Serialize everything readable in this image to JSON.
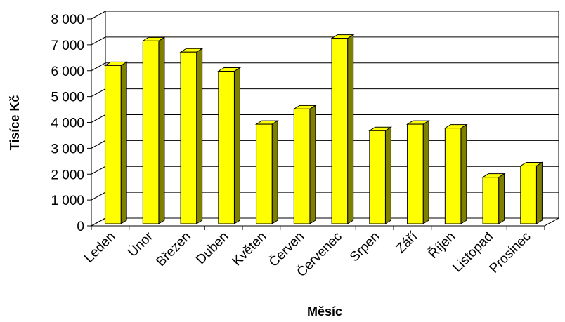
{
  "chart_data": {
    "type": "bar",
    "categories": [
      "Leden",
      "Únor",
      "Březen",
      "Duben",
      "Květen",
      "Červen",
      "Červenec",
      "Srpen",
      "Září",
      "Říjen",
      "Listopad",
      "Prosinec"
    ],
    "values": [
      6200,
      7150,
      6720,
      5980,
      3930,
      4520,
      7250,
      3680,
      3930,
      3780,
      1880,
      2320
    ],
    "title": "",
    "xlabel": "Měsíc",
    "ylabel": "Tisíce Kč",
    "ylim": [
      0,
      8000
    ],
    "yticks": [
      "0",
      "1 000",
      "2 000",
      "3 000",
      "4 000",
      "5 000",
      "6 000",
      "7 000",
      "8 000"
    ],
    "grid": true,
    "legend": "none",
    "bar_color": "#FFFF00",
    "bar_side_color": "#808000",
    "style": "3d-column"
  }
}
